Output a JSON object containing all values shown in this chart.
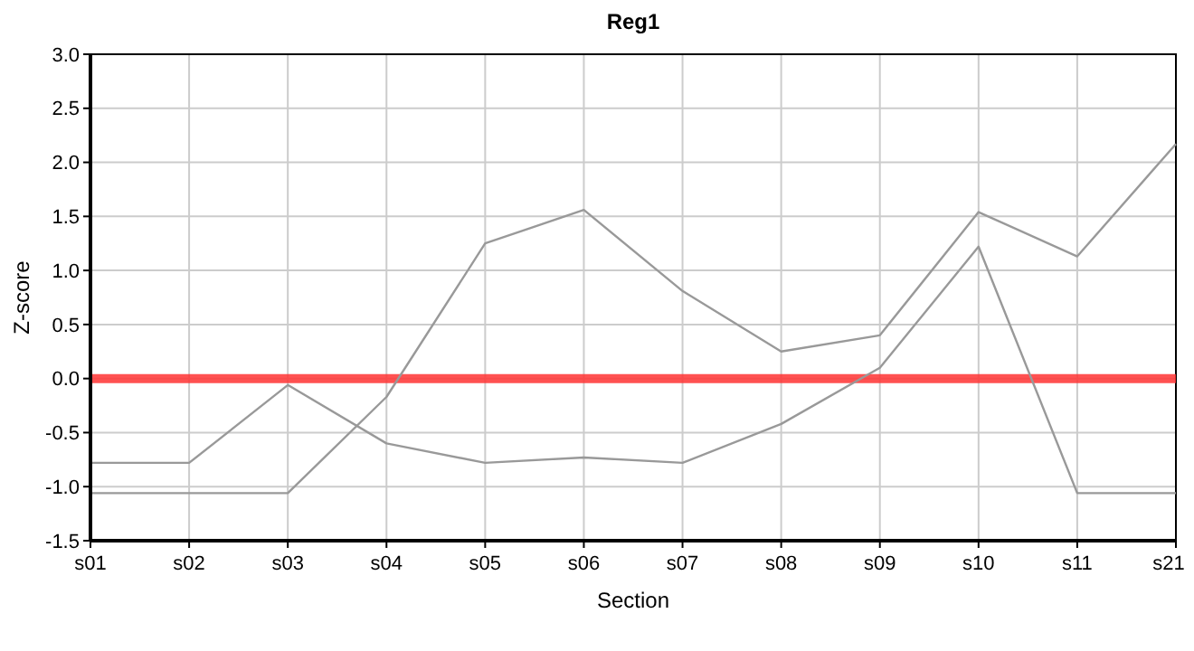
{
  "chart_data": {
    "type": "line",
    "title": "Reg1",
    "xlabel": "Section",
    "ylabel": "Z-score",
    "categories": [
      "s01",
      "s02",
      "s03",
      "s04",
      "s05",
      "s06",
      "s07",
      "s08",
      "s09",
      "s10",
      "s11",
      "s21"
    ],
    "series": [
      {
        "color": "#999999",
        "values": [
          -0.78,
          -0.78,
          -0.06,
          -0.6,
          -0.78,
          -0.73,
          -0.78,
          -0.42,
          0.1,
          1.22,
          -1.06,
          -1.06
        ]
      },
      {
        "color": "#999999",
        "values": [
          -1.06,
          -1.06,
          -1.06,
          -0.17,
          1.25,
          1.56,
          0.81,
          0.25,
          0.4,
          1.54,
          1.13,
          2.17
        ]
      }
    ],
    "ylim": [
      -1.5,
      3.0
    ],
    "yticks": [
      {
        "value": -1.5,
        "label": "-1.5"
      },
      {
        "value": -1,
        "label": "-1.0"
      },
      {
        "value": -0.5,
        "label": "-0.5"
      },
      {
        "value": 0,
        "label": "0.0"
      },
      {
        "value": 0.5,
        "label": "0.5"
      },
      {
        "value": 1,
        "label": "1.0"
      },
      {
        "value": 1.5,
        "label": "1.5"
      },
      {
        "value": 2,
        "label": "2.0"
      },
      {
        "value": 2.5,
        "label": "2.5"
      },
      {
        "value": 3,
        "label": "3.0"
      }
    ],
    "ref_lines": [
      {
        "axis": "y",
        "value": 0,
        "color": "#ff3333"
      }
    ],
    "grid": true,
    "marker": "none",
    "line_style": "solid"
  }
}
